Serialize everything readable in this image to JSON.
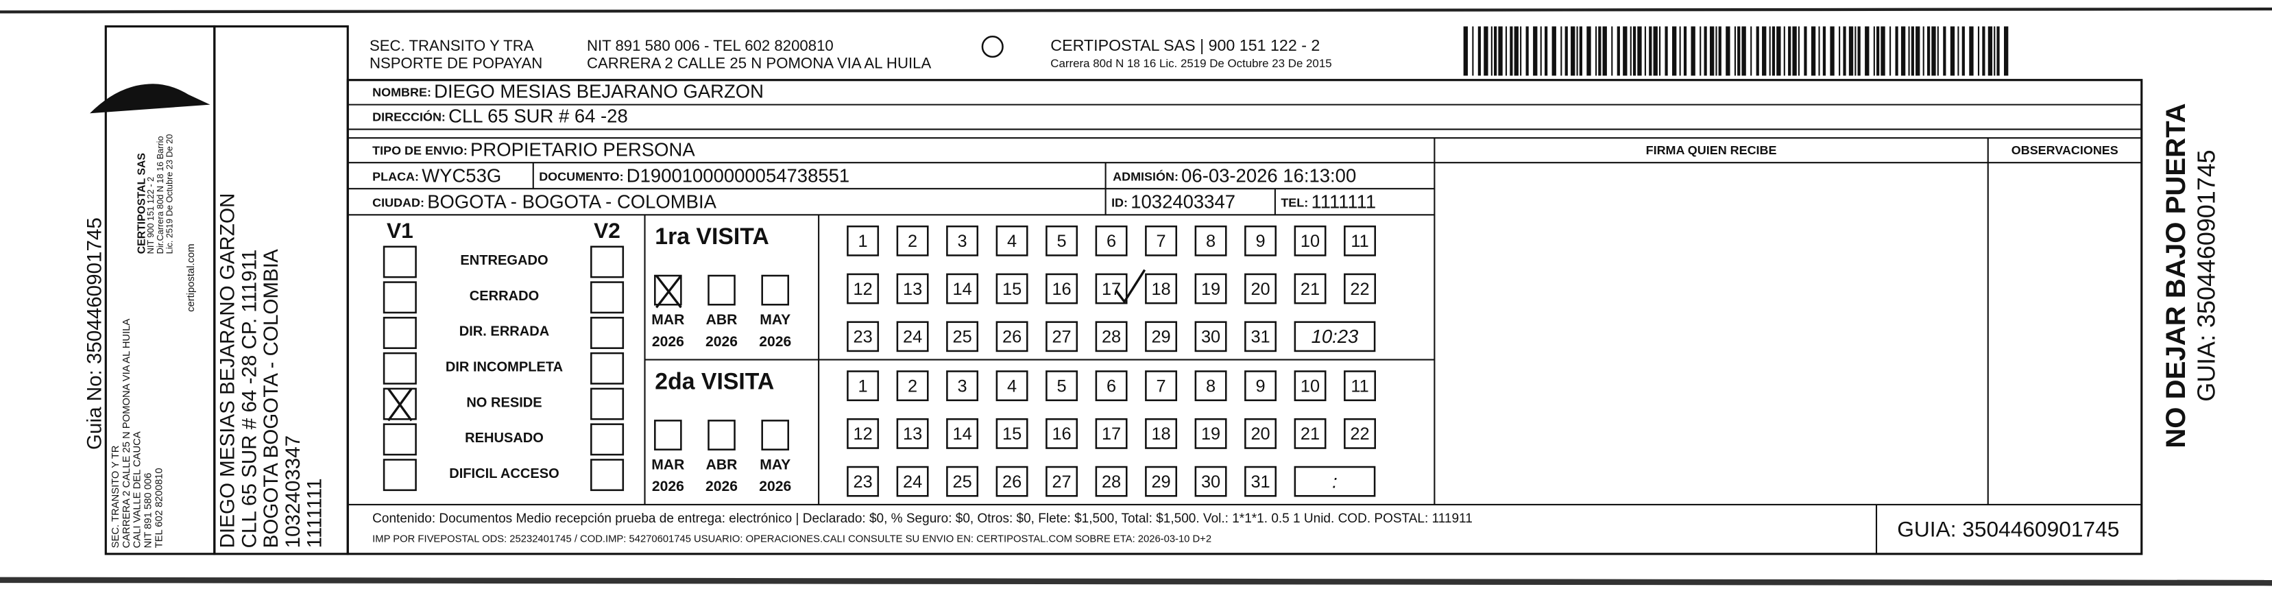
{
  "side_label": "Guia No: 3504460901745",
  "sender": {
    "lines": [
      "SEC. TRANSITO Y TR",
      "CARRERA 2 CALLE 25 N POMONA VIA AL HUILA",
      "CALI VALLE DEL CAUCA",
      "NIT 891 580 006",
      "TEL 602 8200810"
    ]
  },
  "logo": {
    "lines": [
      "CERTIPOSTAL SAS",
      "NIT 900 151 122 - 2",
      "Dir.Carrera 80d N 18 16 Barrio",
      "Lic. 2519 De Octubre 23 De 20"
    ],
    "site": "certipostal.com"
  },
  "recipient": {
    "lines": [
      "DIEGO MESIAS BEJARANO GARZON",
      "CLL 65 SUR # 64 -28 CP. 111911",
      "BOGOTA BOGOTA - COLOMBIA",
      "1032403347",
      "1111111"
    ]
  },
  "header": {
    "sender_name": [
      "SEC. TRANSITO Y TRA",
      "NSPORTE DE POPAYAN"
    ],
    "sender_contact": [
      "NIT 891 580 006 - TEL 602 8200810",
      "CARRERA 2 CALLE 25 N POMONA VIA AL HUILA"
    ],
    "company": [
      "CERTIPOSTAL SAS | 900 151 122 - 2",
      "Carrera 80d N 18 16 Lic. 2519 De Octubre 23 De 2015"
    ]
  },
  "fields": {
    "nombre": {
      "label": "NOMBRE:",
      "value": "DIEGO MESIAS BEJARANO GARZON"
    },
    "direccion": {
      "label": "DIRECCIÓN:",
      "value": "CLL 65 SUR # 64 -28"
    },
    "tipo": {
      "label": "TIPO DE ENVIO:",
      "value": "PROPIETARIO PERSONA"
    },
    "placa": {
      "label": "PLACA:",
      "value": "WYC53G"
    },
    "documento": {
      "label": "DOCUMENTO:",
      "value": "D19001000000054738551"
    },
    "admision": {
      "label": "ADMISIÓN:",
      "value": "06-03-2026 16:13:00"
    },
    "ciudad": {
      "label": "CIUDAD:",
      "value": "BOGOTA - BOGOTA - COLOMBIA"
    },
    "id": {
      "label": "ID:",
      "value": "1032403347"
    },
    "tel": {
      "label": "TEL:",
      "value": "1111111"
    }
  },
  "columns": {
    "firma": "FIRMA QUIEN RECIBE",
    "observaciones": "OBSERVACIONES"
  },
  "reasons": {
    "v1": "V1",
    "v2": "V2",
    "items": [
      "ENTREGADO",
      "CERRADO",
      "DIR. ERRADA",
      "DIR INCOMPLETA",
      "NO RESIDE",
      "REHUSADO",
      "DIFICIL ACCESO"
    ]
  },
  "visits": [
    {
      "title": "1ra VISITA",
      "months": [
        {
          "month": "MAR",
          "year": "2026"
        },
        {
          "month": "ABR",
          "year": "2026"
        },
        {
          "month": "MAY",
          "year": "2026"
        }
      ],
      "days": [
        1,
        2,
        3,
        4,
        5,
        6,
        7,
        8,
        9,
        10,
        11,
        12,
        13,
        14,
        15,
        16,
        17,
        18,
        19,
        20,
        21,
        22,
        23,
        24,
        25,
        26,
        27,
        28,
        29,
        30,
        31
      ],
      "time": "10:23"
    },
    {
      "title": "2da VISITA",
      "months": [
        {
          "month": "MAR",
          "year": "2026"
        },
        {
          "month": "ABR",
          "year": "2026"
        },
        {
          "month": "MAY",
          "year": "2026"
        }
      ],
      "days": [
        1,
        2,
        3,
        4,
        5,
        6,
        7,
        8,
        9,
        10,
        11,
        12,
        13,
        14,
        15,
        16,
        17,
        18,
        19,
        20,
        21,
        22,
        23,
        24,
        25,
        26,
        27,
        28,
        29,
        30,
        31
      ],
      "time": ":"
    }
  ],
  "footer": {
    "contenido": "Contenido: Documentos Medio recepción prueba de entrega: electrónico | Declarado: $0, % Seguro: $0, Otros: $0, Flete: $1,500, Total: $1,500. Vol.: 1*1*1. 0.5  1 Unid. COD. POSTAL: 111911",
    "imp": "IMP POR FIVEPOSTAL ODS: 25232401745 / COD.IMP: 54270601745 USUARIO: OPERACIONES.CALI CONSULTE SU ENVIO EN: CERTIPOSTAL.COM SOBRE ETA: 2026-03-10 D+2",
    "guia": "GUIA: 3504460901745"
  },
  "notice": [
    "NO DEJAR BAJO PUERTA",
    "GUIA: 3504460901745"
  ]
}
